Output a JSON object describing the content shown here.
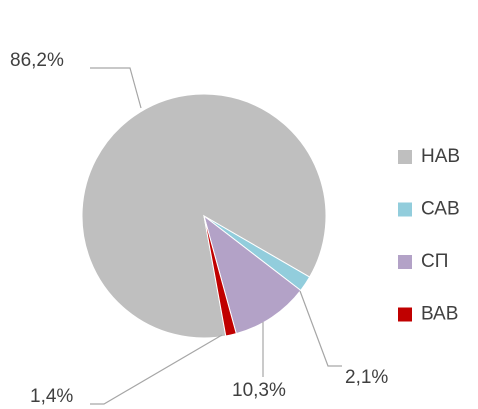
{
  "chart_data": {
    "type": "pie",
    "categories": [
      "НАВ",
      "САВ",
      "СП",
      "ВАВ"
    ],
    "values": [
      86.2,
      2.1,
      10.3,
      1.4
    ],
    "value_labels": [
      "86,2%",
      "2,1%",
      "10,3%",
      "1,4%"
    ],
    "colors": [
      "#bfbfbf",
      "#92cddc",
      "#b3a2c7",
      "#c00000"
    ],
    "legend": "right"
  }
}
